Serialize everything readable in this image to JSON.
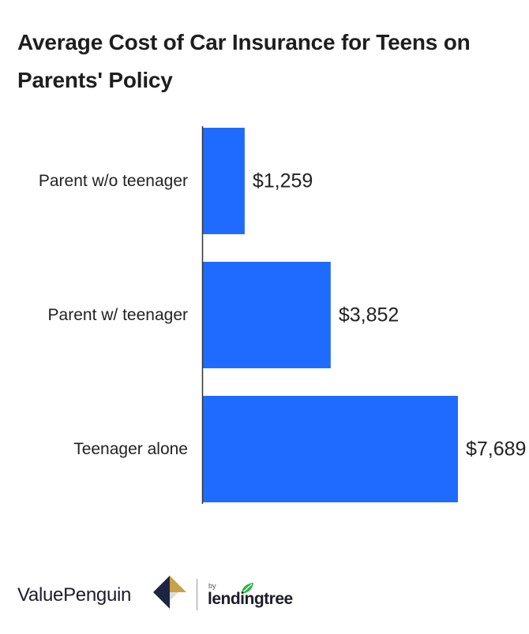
{
  "chart_data": {
    "type": "bar",
    "orientation": "horizontal",
    "title": "Average Cost of Car Insurance for Teens on Parents' Policy",
    "categories": [
      "Parent w/o teenager",
      "Parent w/ teenager",
      "Teenager alone"
    ],
    "values": [
      1259,
      3852,
      7689
    ],
    "value_labels": [
      "$1,259",
      "$3,852",
      "$7,689"
    ],
    "xlim": [
      0,
      7689
    ],
    "grid": false,
    "legend": "none",
    "bar_color": "#1f6bff"
  },
  "footer": {
    "brand": "ValuePenguin",
    "by": "by",
    "partner": "lendingtree"
  },
  "colors": {
    "bar": "#1f6bff",
    "axis": "#333333",
    "logo_navy": "#1d2542",
    "logo_gold": "#c9a247",
    "leaf_green": "#2eb24b"
  }
}
